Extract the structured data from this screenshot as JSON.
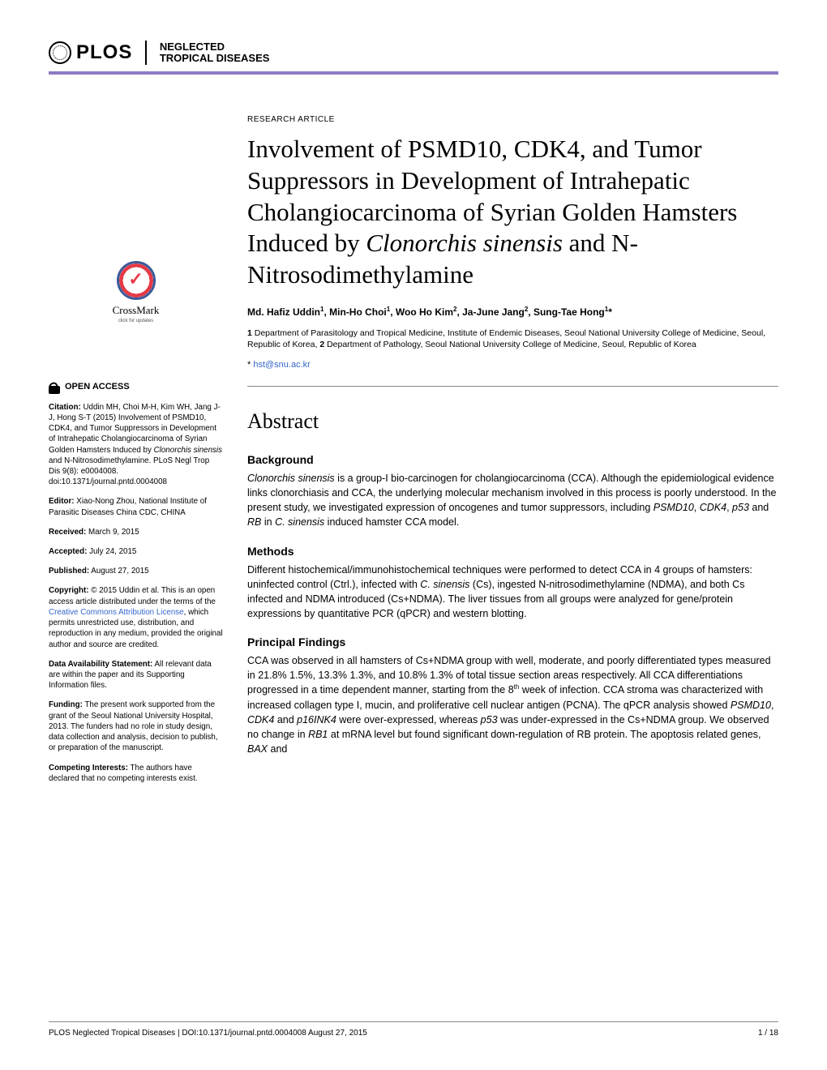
{
  "header": {
    "logo_text": "PLOS",
    "journal_line1": "NEGLECTED",
    "journal_line2": "TROPICAL DISEASES",
    "rule_color": "#8e7cc3"
  },
  "sidebar": {
    "crossmark_label": "CrossMark",
    "crossmark_sub": "click for updates",
    "open_access_label": "OPEN ACCESS",
    "citation_label": "Citation:",
    "citation_text": " Uddin MH, Choi M-H, Kim WH, Jang J-J, Hong S-T (2015) Involvement of PSMD10, CDK4, and Tumor Suppressors in Development of Intrahepatic Cholangiocarcinoma of Syrian Golden Hamsters Induced by ",
    "citation_italic": "Clonorchis sinensis",
    "citation_text2": " and N-Nitrosodimethylamine. PLoS Negl Trop Dis 9(8): e0004008. doi:10.1371/journal.pntd.0004008",
    "editor_label": "Editor:",
    "editor_text": " Xiao-Nong Zhou, National Institute of Parasitic Diseases China CDC, CHINA",
    "received_label": "Received:",
    "received_text": " March 9, 2015",
    "accepted_label": "Accepted:",
    "accepted_text": " July 24, 2015",
    "published_label": "Published:",
    "published_text": " August 27, 2015",
    "copyright_label": "Copyright:",
    "copyright_text1": " © 2015 Uddin et al. This is an open access article distributed under the terms of the ",
    "copyright_link": "Creative Commons Attribution License",
    "copyright_text2": ", which permits unrestricted use, distribution, and reproduction in any medium, provided the original author and source are credited.",
    "data_label": "Data Availability Statement:",
    "data_text": " All relevant data are within the paper and its Supporting Information files.",
    "funding_label": "Funding:",
    "funding_text": " The present work supported from the grant of the Seoul National University Hospital, 2013. The funders had no role in study design, data collection and analysis, decision to publish, or preparation of the manuscript.",
    "competing_label": "Competing Interests:",
    "competing_text": " The authors have declared that no competing interests exist."
  },
  "content": {
    "article_type": "RESEARCH ARTICLE",
    "title_pre": "Involvement of PSMD10, CDK4, and Tumor Suppressors in Development of Intrahepatic Cholangiocarcinoma of Syrian Golden Hamsters Induced by ",
    "title_italic": "Clonorchis sinensis",
    "title_post": " and N-Nitrosodimethylamine",
    "authors_html": "Md. Hafiz Uddin¹, Min-Ho Choi¹, Woo Ho Kim², Ja-June Jang², Sung-Tae Hong¹*",
    "affil1_num": "1",
    "affil1_text": " Department of Parasitology and Tropical Medicine, Institute of Endemic Diseases, Seoul National University College of Medicine, Seoul, Republic of Korea, ",
    "affil2_num": "2",
    "affil2_text": " Department of Pathology, Seoul National University College of Medicine, Seoul, Republic of Korea",
    "corr_star": "* ",
    "corr_email": "hst@snu.ac.kr",
    "abstract_heading": "Abstract",
    "bg_heading": "Background",
    "bg_italic1": "Clonorchis sinensis",
    "bg_text1": " is a group-I bio-carcinogen for cholangiocarcinoma (CCA). Although the epidemiological evidence links clonorchiasis and CCA, the underlying molecular mechanism involved in this process is poorly understood. In the present study, we investigated expression of oncogenes and tumor suppressors, including ",
    "bg_italic2": "PSMD10",
    "bg_text2": ", ",
    "bg_italic3": "CDK4",
    "bg_text3": ", ",
    "bg_italic4": "p53",
    "bg_text4": " and ",
    "bg_italic5": "RB",
    "bg_text5": " in ",
    "bg_italic6": "C. sinensis",
    "bg_text6": " induced hamster CCA model.",
    "methods_heading": "Methods",
    "methods_text1": "Different histochemical/immunohistochemical techniques were performed to detect CCA in 4 groups of hamsters: uninfected control (Ctrl.), infected with ",
    "methods_italic1": "C. sinensis",
    "methods_text2": " (Cs), ingested N-nitrosodimethylamine (NDMA), and both Cs infected and NDMA introduced (Cs+NDMA). The liver tissues from all groups were analyzed for gene/protein expressions by quantitative PCR (qPCR) and western blotting.",
    "findings_heading": "Principal Findings",
    "findings_text1": "CCA was observed in all hamsters of Cs+NDMA group with well, moderate, and poorly differentiated types measured in 21.8%    1.5%, 13.3%    1.3%, and 10.8%    1.3% of total tissue section areas respectively. All CCA differentiations progressed in a time dependent manner, starting from the 8",
    "findings_sup": "th",
    "findings_text2": " week of infection. CCA stroma was characterized with increased collagen type I, mucin, and proliferative cell nuclear antigen (PCNA). The qPCR analysis showed ",
    "findings_i1": "PSMD10",
    "findings_t3": ", ",
    "findings_i2": "CDK4",
    "findings_t4": " and ",
    "findings_i3": "p16INK4",
    "findings_t5": " were over-expressed, whereas ",
    "findings_i4": "p53",
    "findings_t6": " was under-expressed in the Cs+NDMA group. We observed no change in ",
    "findings_i5": "RB1",
    "findings_t7": " at mRNA level but found significant down-regulation of RB protein. The apoptosis related genes, ",
    "findings_i6": "BAX",
    "findings_t8": " and"
  },
  "footer": {
    "left": "PLOS Neglected Tropical Diseases | DOI:10.1371/journal.pntd.0004008    August 27, 2015",
    "right": "1 / 18"
  }
}
